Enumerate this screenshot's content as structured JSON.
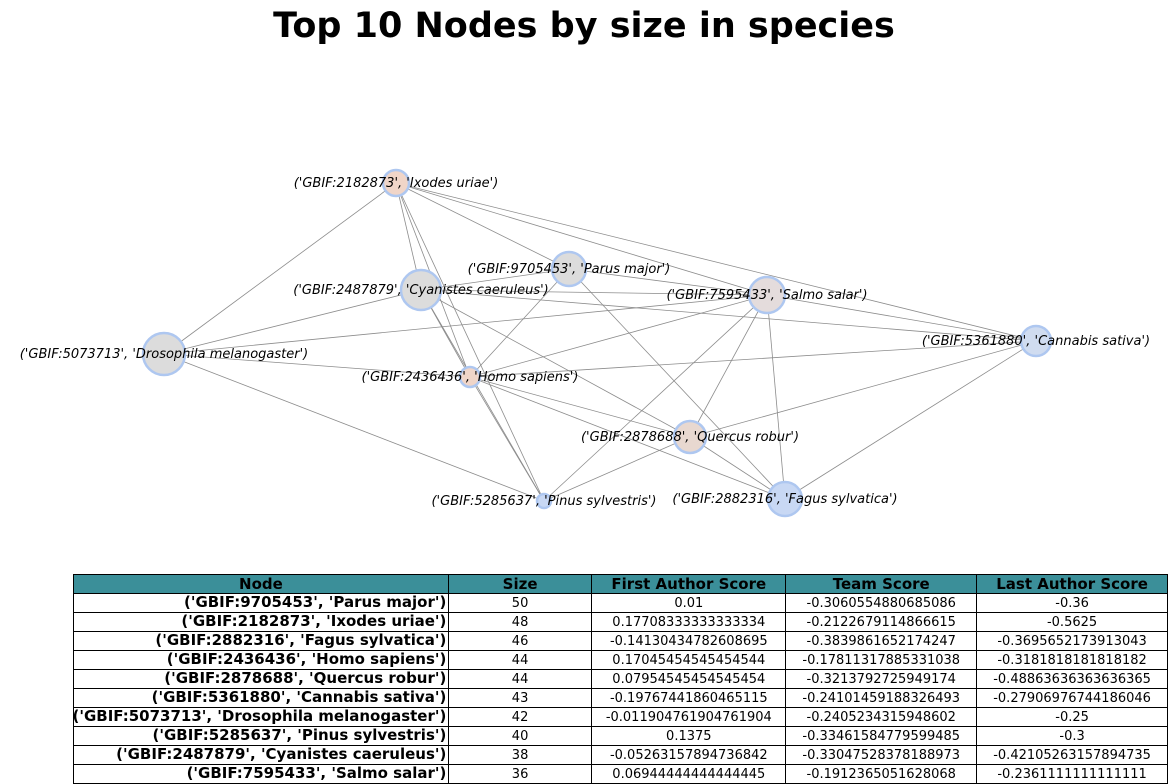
{
  "title": "Top 10 Nodes by size in species",
  "chart_data": {
    "type": "network",
    "nodes": [
      {
        "id": "n1",
        "label": "('GBIF:2182873', 'Ixodes uriae')",
        "color": "#f0d5c8"
      },
      {
        "id": "n2",
        "label": "('GBIF:9705453', 'Parus major')",
        "color": "#dcdcdc"
      },
      {
        "id": "n3",
        "label": "('GBIF:2487879', 'Cyanistes caeruleus')",
        "color": "#dcdcdc"
      },
      {
        "id": "n4",
        "label": "('GBIF:7595433', 'Salmo salar')",
        "color": "#e4dcdc"
      },
      {
        "id": "n5",
        "label": "('GBIF:5361880', 'Cannabis sativa')",
        "color": "#d0dcf0"
      },
      {
        "id": "n6",
        "label": "('GBIF:5073713', 'Drosophila melanogaster')",
        "color": "#dcdcdc"
      },
      {
        "id": "n7",
        "label": "('GBIF:2436436', 'Homo sapiens')",
        "color": "#f0d5c8"
      },
      {
        "id": "n8",
        "label": "('GBIF:2878688', 'Quercus robur')",
        "color": "#e8d8d0"
      },
      {
        "id": "n9",
        "label": "('GBIF:5285637', 'Pinus sylvestris')",
        "color": "#c8d8f4"
      },
      {
        "id": "n10",
        "label": "('GBIF:2882316', 'Fagus sylvatica')",
        "color": "#c8d8f4"
      }
    ],
    "edges": [
      [
        "n1",
        "n6"
      ],
      [
        "n1",
        "n2"
      ],
      [
        "n1",
        "n4"
      ],
      [
        "n1",
        "n5"
      ],
      [
        "n1",
        "n3"
      ],
      [
        "n1",
        "n7"
      ],
      [
        "n1",
        "n9"
      ],
      [
        "n2",
        "n7"
      ],
      [
        "n2",
        "n4"
      ],
      [
        "n2",
        "n10"
      ],
      [
        "n3",
        "n6"
      ],
      [
        "n3",
        "n2"
      ],
      [
        "n3",
        "n4"
      ],
      [
        "n3",
        "n5"
      ],
      [
        "n3",
        "n7"
      ],
      [
        "n3",
        "n8"
      ],
      [
        "n3",
        "n9"
      ],
      [
        "n4",
        "n5"
      ],
      [
        "n4",
        "n7"
      ],
      [
        "n4",
        "n8"
      ],
      [
        "n4",
        "n9"
      ],
      [
        "n4",
        "n10"
      ],
      [
        "n5",
        "n7"
      ],
      [
        "n5",
        "n8"
      ],
      [
        "n5",
        "n10"
      ],
      [
        "n6",
        "n4"
      ],
      [
        "n6",
        "n7"
      ],
      [
        "n6",
        "n9"
      ],
      [
        "n7",
        "n8"
      ],
      [
        "n7",
        "n9"
      ],
      [
        "n7",
        "n10"
      ],
      [
        "n8",
        "n9"
      ],
      [
        "n8",
        "n10"
      ]
    ]
  },
  "table": {
    "headers": [
      "Node",
      "Size",
      "First Author Score",
      "Team Score",
      "Last Author Score"
    ],
    "rows": [
      {
        "node": "('GBIF:9705453', 'Parus major')",
        "size": "50",
        "first": "0.01",
        "team": "-0.3060554880685086",
        "last": "-0.36"
      },
      {
        "node": "('GBIF:2182873', 'Ixodes uriae')",
        "size": "48",
        "first": "0.17708333333333334",
        "team": "-0.2122679114866615",
        "last": "-0.5625"
      },
      {
        "node": "('GBIF:2882316', 'Fagus sylvatica')",
        "size": "46",
        "first": "-0.14130434782608695",
        "team": "-0.3839861652174247",
        "last": "-0.3695652173913043"
      },
      {
        "node": "('GBIF:2436436', 'Homo sapiens')",
        "size": "44",
        "first": "0.17045454545454544",
        "team": "-0.17811317885331038",
        "last": "-0.3181818181818182"
      },
      {
        "node": "('GBIF:2878688', 'Quercus robur')",
        "size": "44",
        "first": "0.07954545454545454",
        "team": "-0.3213792725949174",
        "last": "-0.48863636363636365"
      },
      {
        "node": "('GBIF:5361880', 'Cannabis sativa')",
        "size": "43",
        "first": "-0.19767441860465115",
        "team": "-0.24101459188326493",
        "last": "-0.27906976744186046"
      },
      {
        "node": "('GBIF:5073713', 'Drosophila melanogaster')",
        "size": "42",
        "first": "-0.011904761904761904",
        "team": "-0.2405234315948602",
        "last": "-0.25"
      },
      {
        "node": "('GBIF:5285637', 'Pinus sylvestris')",
        "size": "40",
        "first": "0.1375",
        "team": "-0.33461584779599485",
        "last": "-0.3"
      },
      {
        "node": "('GBIF:2487879', 'Cyanistes caeruleus')",
        "size": "38",
        "first": "-0.05263157894736842",
        "team": "-0.33047528378188973",
        "last": "-0.42105263157894735"
      },
      {
        "node": "('GBIF:7595433', 'Salmo salar')",
        "size": "36",
        "first": "0.06944444444444445",
        "team": "-0.1912365051628068",
        "last": "-0.2361111111111111"
      }
    ]
  }
}
